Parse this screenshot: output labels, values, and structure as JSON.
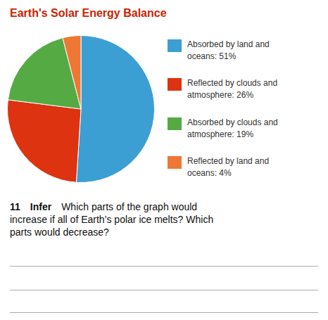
{
  "chart_data": {
    "type": "pie",
    "title": "Earth's Solar Energy Balance",
    "categories": [
      "Absorbed by land and\noceans: 51%",
      "Reflected by clouds and\natmosphere: 26%",
      "Absorbed by clouds and\natmosphere: 19%",
      "Reflected by land and\noceans: 4%"
    ],
    "values": [
      51,
      26,
      19,
      4
    ],
    "colors": [
      "#3b9fd4",
      "#dd3311",
      "#55aa44",
      "#ee7733"
    ],
    "legend": "right",
    "annotations": [
      "11",
      "Infer",
      "Which parts of the graph would\nincrease if all of Earth’s polar ice melts? Which\nparts would decrease?"
    ]
  }
}
